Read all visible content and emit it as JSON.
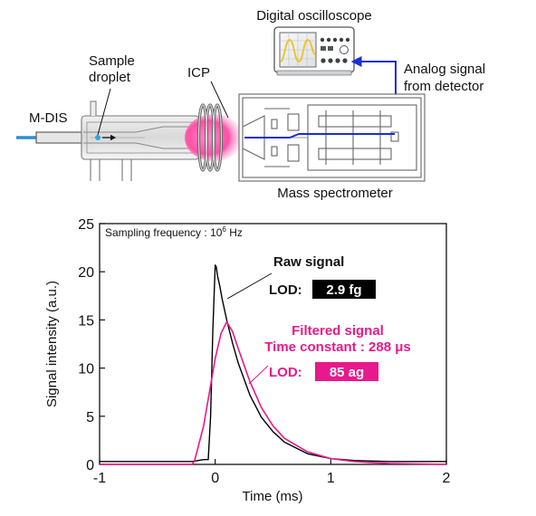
{
  "schematic": {
    "oscilloscope_label": "Digital oscilloscope",
    "sample_droplet_line1": "Sample",
    "sample_droplet_line2": "droplet",
    "icp_label": "ICP",
    "mdis_label": "M-DIS",
    "analog_signal_line1": "Analog signal",
    "analog_signal_line2": "from detector",
    "mass_spec_label": "Mass spectrometer",
    "colors": {
      "signal_line": "#1a2fd0",
      "plasma": "#ff4fa6",
      "droplet": "#2aa8e6",
      "gas_line": "#2a8fd8"
    }
  },
  "plot": {
    "sampling_prefix": "Sampling frequency : 10",
    "sampling_exp": "6",
    "sampling_unit": " Hz",
    "raw_label": "Raw signal",
    "raw_lod_label": "LOD:",
    "raw_lod_value": "2.9 fg",
    "filtered_label_line1": "Filtered signal",
    "filtered_label_line2": "Time constant : 288 μs",
    "filtered_lod_label": "LOD:",
    "filtered_lod_value": "85 ag",
    "colors": {
      "raw": "#000000",
      "filtered": "#e8198b"
    }
  },
  "chart_data": {
    "type": "line",
    "xlabel": "Time (ms)",
    "ylabel": "Signal intensity (a.u.)",
    "xlim": [
      -1,
      2
    ],
    "ylim": [
      0,
      25
    ],
    "xticks": [
      "-1",
      "0",
      "1",
      "2"
    ],
    "yticks": [
      "0",
      "5",
      "10",
      "15",
      "20",
      "25"
    ],
    "series": [
      {
        "name": "Raw signal",
        "color": "#000000",
        "x": [
          -1.0,
          -0.2,
          -0.1,
          -0.06,
          -0.04,
          -0.02,
          0.0,
          0.01,
          0.02,
          0.04,
          0.06,
          0.1,
          0.15,
          0.2,
          0.3,
          0.4,
          0.5,
          0.6,
          0.8,
          1.0,
          1.2,
          1.5,
          2.0
        ],
        "y": [
          0.3,
          0.3,
          0.5,
          0.5,
          5.0,
          14.0,
          20.7,
          20.5,
          19.6,
          18.5,
          17.2,
          15.0,
          12.6,
          10.5,
          7.2,
          4.9,
          3.4,
          2.3,
          1.1,
          0.6,
          0.4,
          0.3,
          0.3
        ]
      },
      {
        "name": "Filtered signal",
        "color": "#e8198b",
        "x": [
          -1.0,
          -0.2,
          -0.18,
          -0.1,
          -0.05,
          0.0,
          0.05,
          0.1,
          0.15,
          0.2,
          0.3,
          0.4,
          0.5,
          0.6,
          0.8,
          1.0,
          1.2,
          1.5,
          2.0
        ],
        "y": [
          0.0,
          0.0,
          0.3,
          4.0,
          7.5,
          11.0,
          13.6,
          14.8,
          13.8,
          12.0,
          8.6,
          5.9,
          4.0,
          2.7,
          1.3,
          0.6,
          0.3,
          0.1,
          0.0
        ]
      }
    ]
  }
}
